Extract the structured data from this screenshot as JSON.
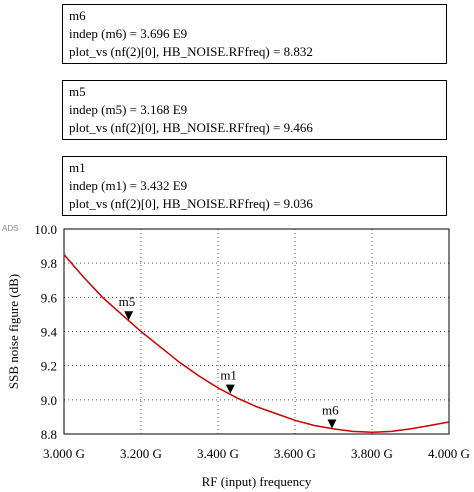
{
  "markers": [
    {
      "name": "m6",
      "indep": "indep (m6) = 3.696 E9",
      "value": "plot_vs (nf(2)[0], HB_NOISE.RFfreq) = 8.832"
    },
    {
      "name": "m5",
      "indep": "indep (m5) = 3.168 E9",
      "value": "plot_vs (nf(2)[0], HB_NOISE.RFfreq) = 9.466"
    },
    {
      "name": "m1",
      "indep": "indep (m1) = 3.432 E9",
      "value": "plot_vs (nf(2)[0], HB_NOISE.RFfreq) = 9.036"
    }
  ],
  "ads_tag": "ADS",
  "chart_data": {
    "type": "line",
    "title": "",
    "xlabel": "RF (input) frequency",
    "ylabel": "SSB noise figure (dB)",
    "xlim": [
      3.0,
      4.0
    ],
    "ylim": [
      8.8,
      10.0
    ],
    "grid": true,
    "x_tick_values": [
      3.0,
      3.2,
      3.4,
      3.6,
      3.8,
      4.0
    ],
    "x_tick_labels": [
      "3.000 G",
      "3.200 G",
      "3.400 G",
      "3.600 G",
      "3.800 G",
      "4.000 G"
    ],
    "y_tick_values": [
      8.8,
      9.0,
      9.2,
      9.4,
      9.6,
      9.8,
      10.0
    ],
    "y_tick_labels": [
      "8.8",
      "9.0",
      "9.2",
      "9.4",
      "9.6",
      "9.8",
      "10.0"
    ],
    "series": [
      {
        "color": "#cc0000",
        "x": [
          3.0,
          3.05,
          3.1,
          3.15,
          3.2,
          3.25,
          3.3,
          3.35,
          3.4,
          3.45,
          3.5,
          3.55,
          3.6,
          3.65,
          3.7,
          3.75,
          3.8,
          3.85,
          3.9,
          3.95,
          4.0
        ],
        "y": [
          9.85,
          9.72,
          9.6,
          9.5,
          9.4,
          9.31,
          9.22,
          9.14,
          9.07,
          9.01,
          8.96,
          8.92,
          8.88,
          8.85,
          8.83,
          8.815,
          8.81,
          8.815,
          8.83,
          8.85,
          8.87
        ]
      }
    ],
    "marker_points": [
      {
        "label": "m5",
        "x": 3.168,
        "y": 9.466
      },
      {
        "label": "m1",
        "x": 3.432,
        "y": 9.036
      },
      {
        "label": "m6",
        "x": 3.696,
        "y": 8.832
      }
    ]
  }
}
